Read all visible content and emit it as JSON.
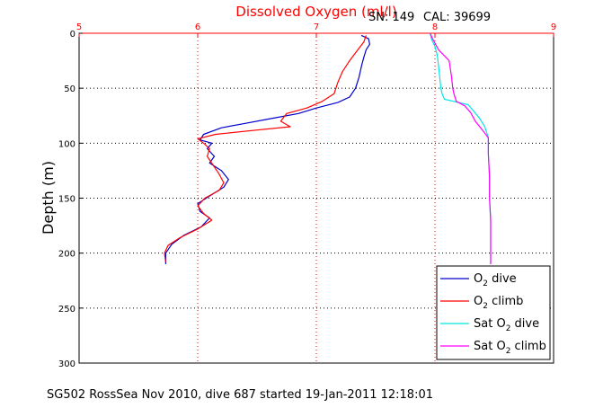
{
  "chart_data": {
    "type": "line",
    "title": "Dissolved Oxygen (ml/l)",
    "serial": "SN: 149",
    "calibration": "CAL: 39699",
    "ylabel": "Depth (m)",
    "xlabel": "",
    "xlim": [
      5,
      9
    ],
    "ylim": [
      300,
      0
    ],
    "x_ticks": [
      "5",
      "6",
      "7",
      "8",
      "9"
    ],
    "y_ticks": [
      "0",
      "50",
      "100",
      "150",
      "200",
      "250",
      "300"
    ],
    "grid": true,
    "legend_position": "bottom-right",
    "footer": "SG502 RossSea Nov 2010, dive 687 started 19-Jan-2011 12:18:01",
    "colors": {
      "title": "#ff0000",
      "x_axis": "#ff0000",
      "grid_x": "#ff0000",
      "grid_y": "#000000",
      "o2_dive": "#0000cc",
      "o2_climb": "#ff0000",
      "sat_dive": "#00e5e5",
      "sat_climb": "#ff00ff"
    },
    "series": [
      {
        "key": "o2_dive",
        "name": "O2 dive",
        "legend_main": "O",
        "legend_sub": "2",
        "legend_rest": " dive",
        "points": [
          [
            7.38,
            2
          ],
          [
            7.44,
            5
          ],
          [
            7.45,
            10
          ],
          [
            7.42,
            15
          ],
          [
            7.4,
            22
          ],
          [
            7.38,
            30
          ],
          [
            7.36,
            40
          ],
          [
            7.33,
            50
          ],
          [
            7.28,
            58
          ],
          [
            7.18,
            63
          ],
          [
            7.0,
            68
          ],
          [
            6.85,
            73
          ],
          [
            6.6,
            78
          ],
          [
            6.4,
            82
          ],
          [
            6.2,
            86
          ],
          [
            6.05,
            92
          ],
          [
            6.02,
            97
          ],
          [
            6.12,
            100
          ],
          [
            6.08,
            105
          ],
          [
            6.14,
            112
          ],
          [
            6.1,
            118
          ],
          [
            6.2,
            125
          ],
          [
            6.26,
            133
          ],
          [
            6.22,
            140
          ],
          [
            6.1,
            148
          ],
          [
            6.0,
            155
          ],
          [
            6.02,
            162
          ],
          [
            6.1,
            168
          ],
          [
            6.03,
            176
          ],
          [
            5.88,
            184
          ],
          [
            5.78,
            192
          ],
          [
            5.73,
            200
          ],
          [
            5.73,
            210
          ]
        ]
      },
      {
        "key": "o2_climb",
        "name": "O2 climb",
        "legend_main": "O",
        "legend_sub": "2",
        "legend_rest": " climb",
        "points": [
          [
            7.42,
            2
          ],
          [
            7.4,
            8
          ],
          [
            7.35,
            15
          ],
          [
            7.28,
            25
          ],
          [
            7.22,
            35
          ],
          [
            7.18,
            45
          ],
          [
            7.15,
            55
          ],
          [
            7.05,
            62
          ],
          [
            6.92,
            68
          ],
          [
            6.75,
            73
          ],
          [
            6.7,
            80
          ],
          [
            6.78,
            85
          ],
          [
            6.5,
            88
          ],
          [
            6.15,
            92
          ],
          [
            6.0,
            96
          ],
          [
            6.05,
            100
          ],
          [
            6.1,
            105
          ],
          [
            6.08,
            112
          ],
          [
            6.13,
            120
          ],
          [
            6.18,
            128
          ],
          [
            6.22,
            136
          ],
          [
            6.18,
            143
          ],
          [
            6.06,
            150
          ],
          [
            6.0,
            157
          ],
          [
            6.05,
            164
          ],
          [
            6.12,
            170
          ],
          [
            6.0,
            178
          ],
          [
            5.85,
            186
          ],
          [
            5.75,
            193
          ],
          [
            5.72,
            200
          ],
          [
            5.73,
            208
          ]
        ]
      },
      {
        "key": "sat_dive",
        "name": "Sat O2 dive",
        "legend_main": "Sat O",
        "legend_sub": "2",
        "legend_rest": " dive",
        "points": [
          [
            7.96,
            0
          ],
          [
            7.97,
            5
          ],
          [
            8.0,
            12
          ],
          [
            8.02,
            20
          ],
          [
            8.03,
            30
          ],
          [
            8.04,
            40
          ],
          [
            8.05,
            50
          ],
          [
            8.06,
            55
          ],
          [
            8.08,
            60
          ],
          [
            8.2,
            63
          ],
          [
            8.28,
            65
          ],
          [
            8.32,
            70
          ],
          [
            8.38,
            78
          ],
          [
            8.42,
            85
          ],
          [
            8.45,
            95
          ],
          [
            8.45,
            110
          ],
          [
            8.46,
            130
          ],
          [
            8.46,
            150
          ],
          [
            8.47,
            170
          ],
          [
            8.47,
            190
          ],
          [
            8.47,
            210
          ]
        ]
      },
      {
        "key": "sat_climb",
        "name": "Sat O2 climb",
        "legend_main": "Sat O",
        "legend_sub": "2",
        "legend_rest": " climb",
        "points": [
          [
            7.96,
            0
          ],
          [
            7.98,
            5
          ],
          [
            8.03,
            15
          ],
          [
            8.12,
            25
          ],
          [
            8.14,
            40
          ],
          [
            8.15,
            50
          ],
          [
            8.16,
            55
          ],
          [
            8.18,
            62
          ],
          [
            8.25,
            66
          ],
          [
            8.3,
            72
          ],
          [
            8.34,
            80
          ],
          [
            8.4,
            88
          ],
          [
            8.45,
            95
          ],
          [
            8.45,
            110
          ],
          [
            8.46,
            130
          ],
          [
            8.46,
            150
          ],
          [
            8.47,
            170
          ],
          [
            8.47,
            190
          ],
          [
            8.47,
            210
          ]
        ]
      }
    ]
  }
}
